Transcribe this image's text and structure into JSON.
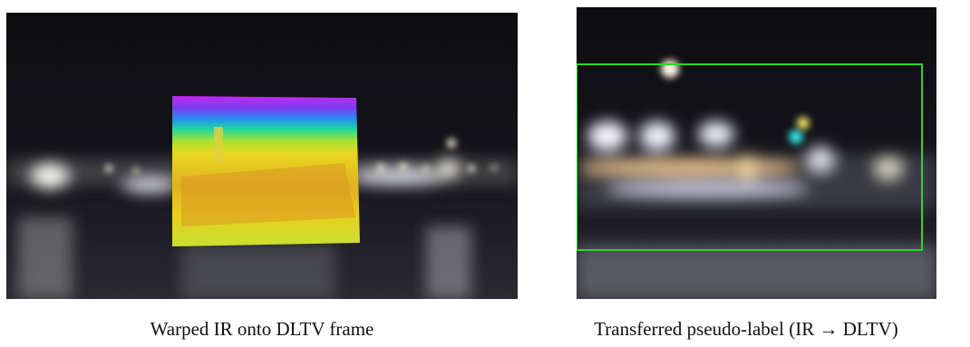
{
  "figure": {
    "panels": [
      {
        "caption": "Warped IR onto DLTV frame"
      },
      {
        "caption": "Transferred pseudo-label (IR → DLTV)"
      }
    ]
  }
}
